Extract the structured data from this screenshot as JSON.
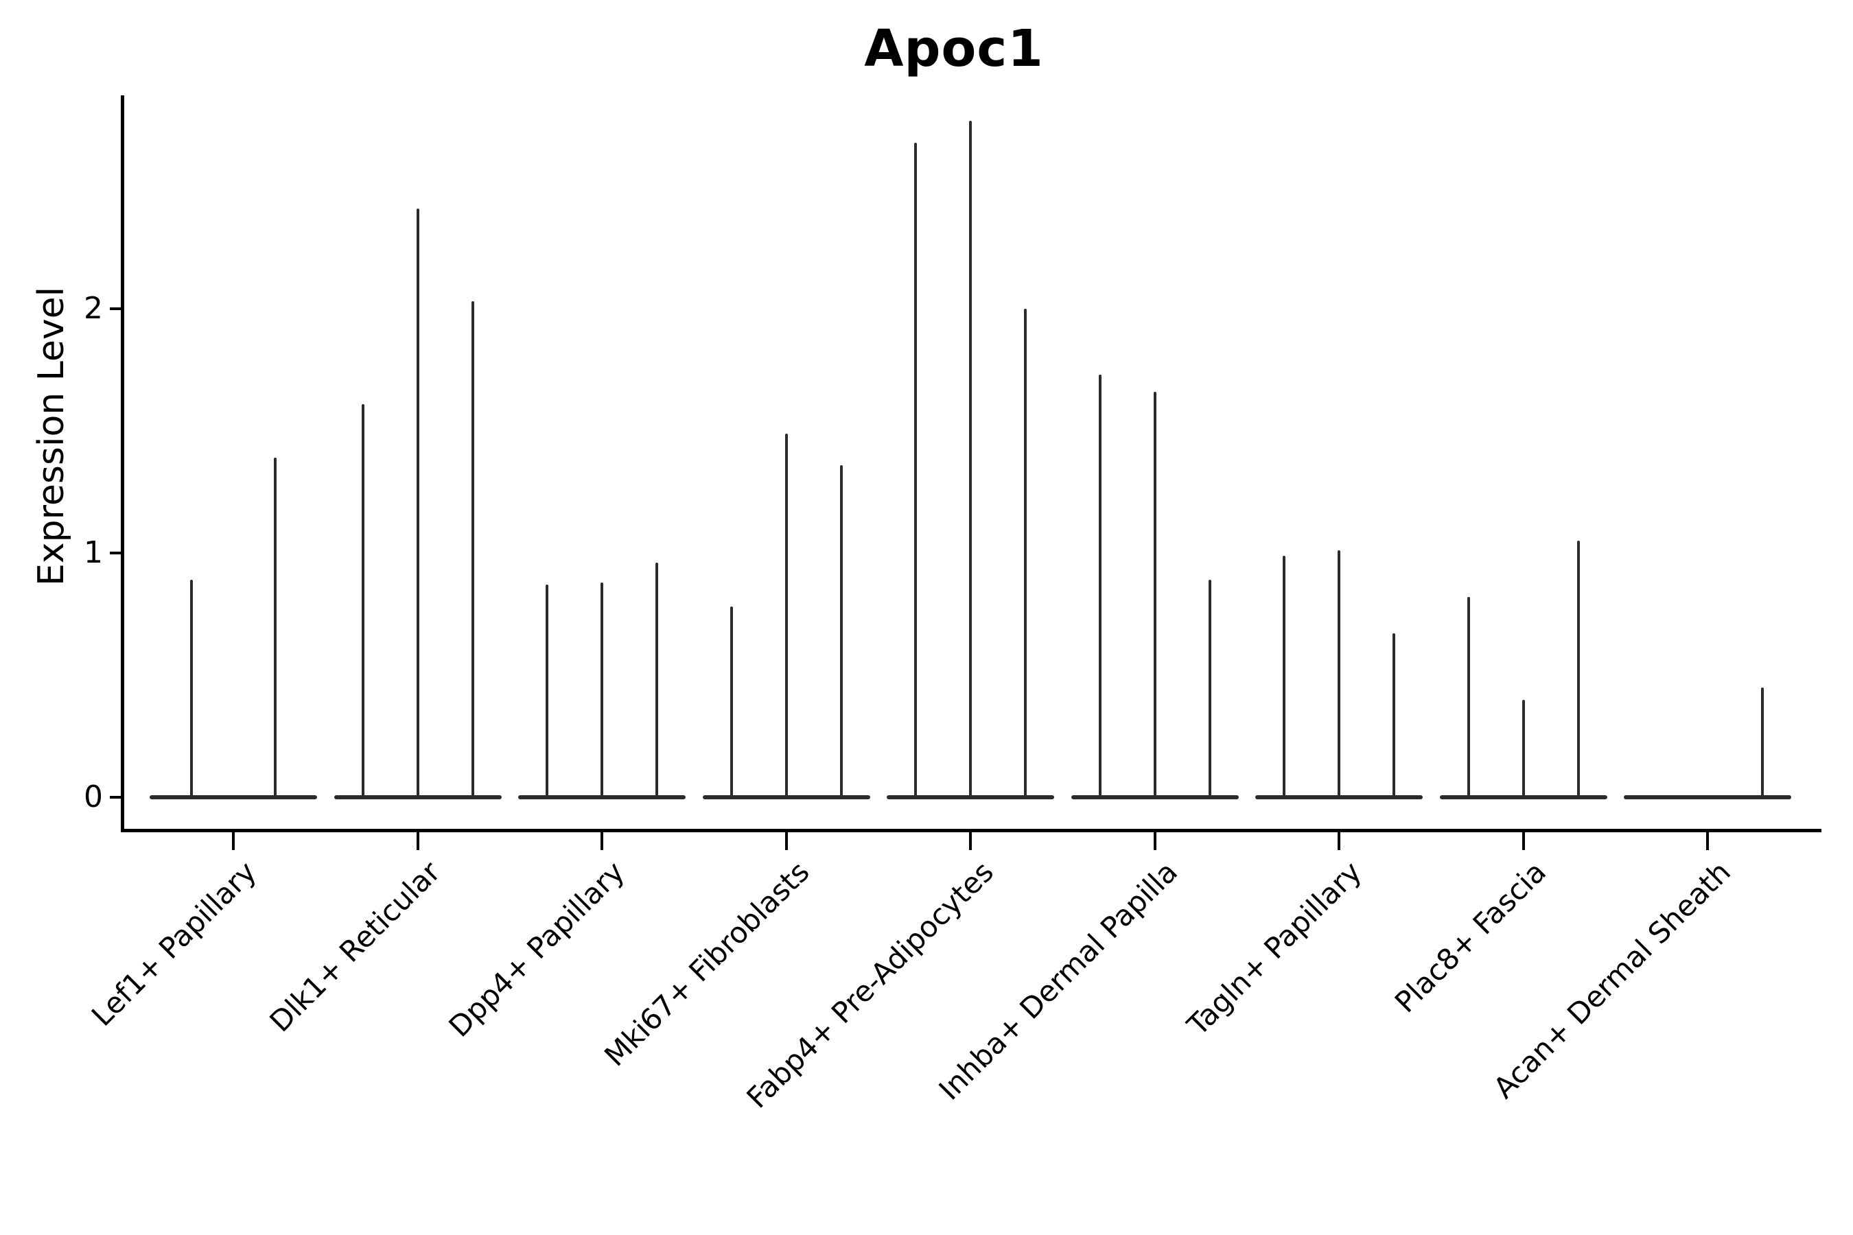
{
  "title": "Apoc1",
  "chart_data": {
    "type": "violin",
    "title": "Apoc1",
    "xlabel": "",
    "ylabel": "Expression Level",
    "yticks": [
      0,
      1,
      2
    ],
    "ylim": [
      -0.14,
      2.87
    ],
    "grid": false,
    "legend": false,
    "colors": {
      "violin_line": "#2b2b2b",
      "axis": "#000000",
      "background": "#ffffff"
    },
    "description": "Violin plot of Apoc1 expression; each identity shows flat violins at 0 with thin density spikes up to the maximum expression value",
    "categories": [
      "Lef1+ Papillary",
      "Dlk1+ Reticular",
      "Dpp4+ Papillary",
      "Mki67+ Fibroblasts",
      "Fabp4+ Pre-Adipocytes",
      "Inhba+ Dermal Papilla",
      "Tagln+ Papillary",
      "Plac8+ Fascia",
      "Acan+ Dermal Sheath"
    ],
    "violins": [
      {
        "category": "Lef1+ Papillary",
        "spikes": [
          {
            "dx": -61,
            "max": 0.89
          },
          {
            "dx": 61,
            "max": 1.39
          }
        ]
      },
      {
        "category": "Dlk1+ Reticular",
        "spikes": [
          {
            "dx": -80,
            "max": 1.61
          },
          {
            "dx": 0,
            "max": 2.41
          },
          {
            "dx": 80,
            "max": 2.03
          }
        ]
      },
      {
        "category": "Dpp4+ Papillary",
        "spikes": [
          {
            "dx": -80,
            "max": 0.87
          },
          {
            "dx": 0,
            "max": 0.88
          },
          {
            "dx": 80,
            "max": 0.96
          }
        ]
      },
      {
        "category": "Mki67+ Fibroblasts",
        "spikes": [
          {
            "dx": -80,
            "max": 0.78
          },
          {
            "dx": 0,
            "max": 1.49
          },
          {
            "dx": 80,
            "max": 1.36
          }
        ]
      },
      {
        "category": "Fabp4+ Pre-Adipocytes",
        "spikes": [
          {
            "dx": -80,
            "max": 2.68
          },
          {
            "dx": 0,
            "max": 2.77
          },
          {
            "dx": 80,
            "max": 2.0
          }
        ]
      },
      {
        "category": "Inhba+ Dermal Papilla",
        "spikes": [
          {
            "dx": -80,
            "max": 1.73
          },
          {
            "dx": 0,
            "max": 1.66
          },
          {
            "dx": 80,
            "max": 0.89
          }
        ]
      },
      {
        "category": "Tagln+ Papillary",
        "spikes": [
          {
            "dx": -80,
            "max": 0.99
          },
          {
            "dx": 0,
            "max": 1.01
          },
          {
            "dx": 80,
            "max": 0.67
          }
        ]
      },
      {
        "category": "Plac8+ Fascia",
        "spikes": [
          {
            "dx": -80,
            "max": 0.82
          },
          {
            "dx": 0,
            "max": 0.4
          },
          {
            "dx": 80,
            "max": 1.05
          }
        ]
      },
      {
        "category": "Acan+ Dermal Sheath",
        "spikes": [
          {
            "dx": 80,
            "max": 0.45
          }
        ]
      }
    ]
  }
}
